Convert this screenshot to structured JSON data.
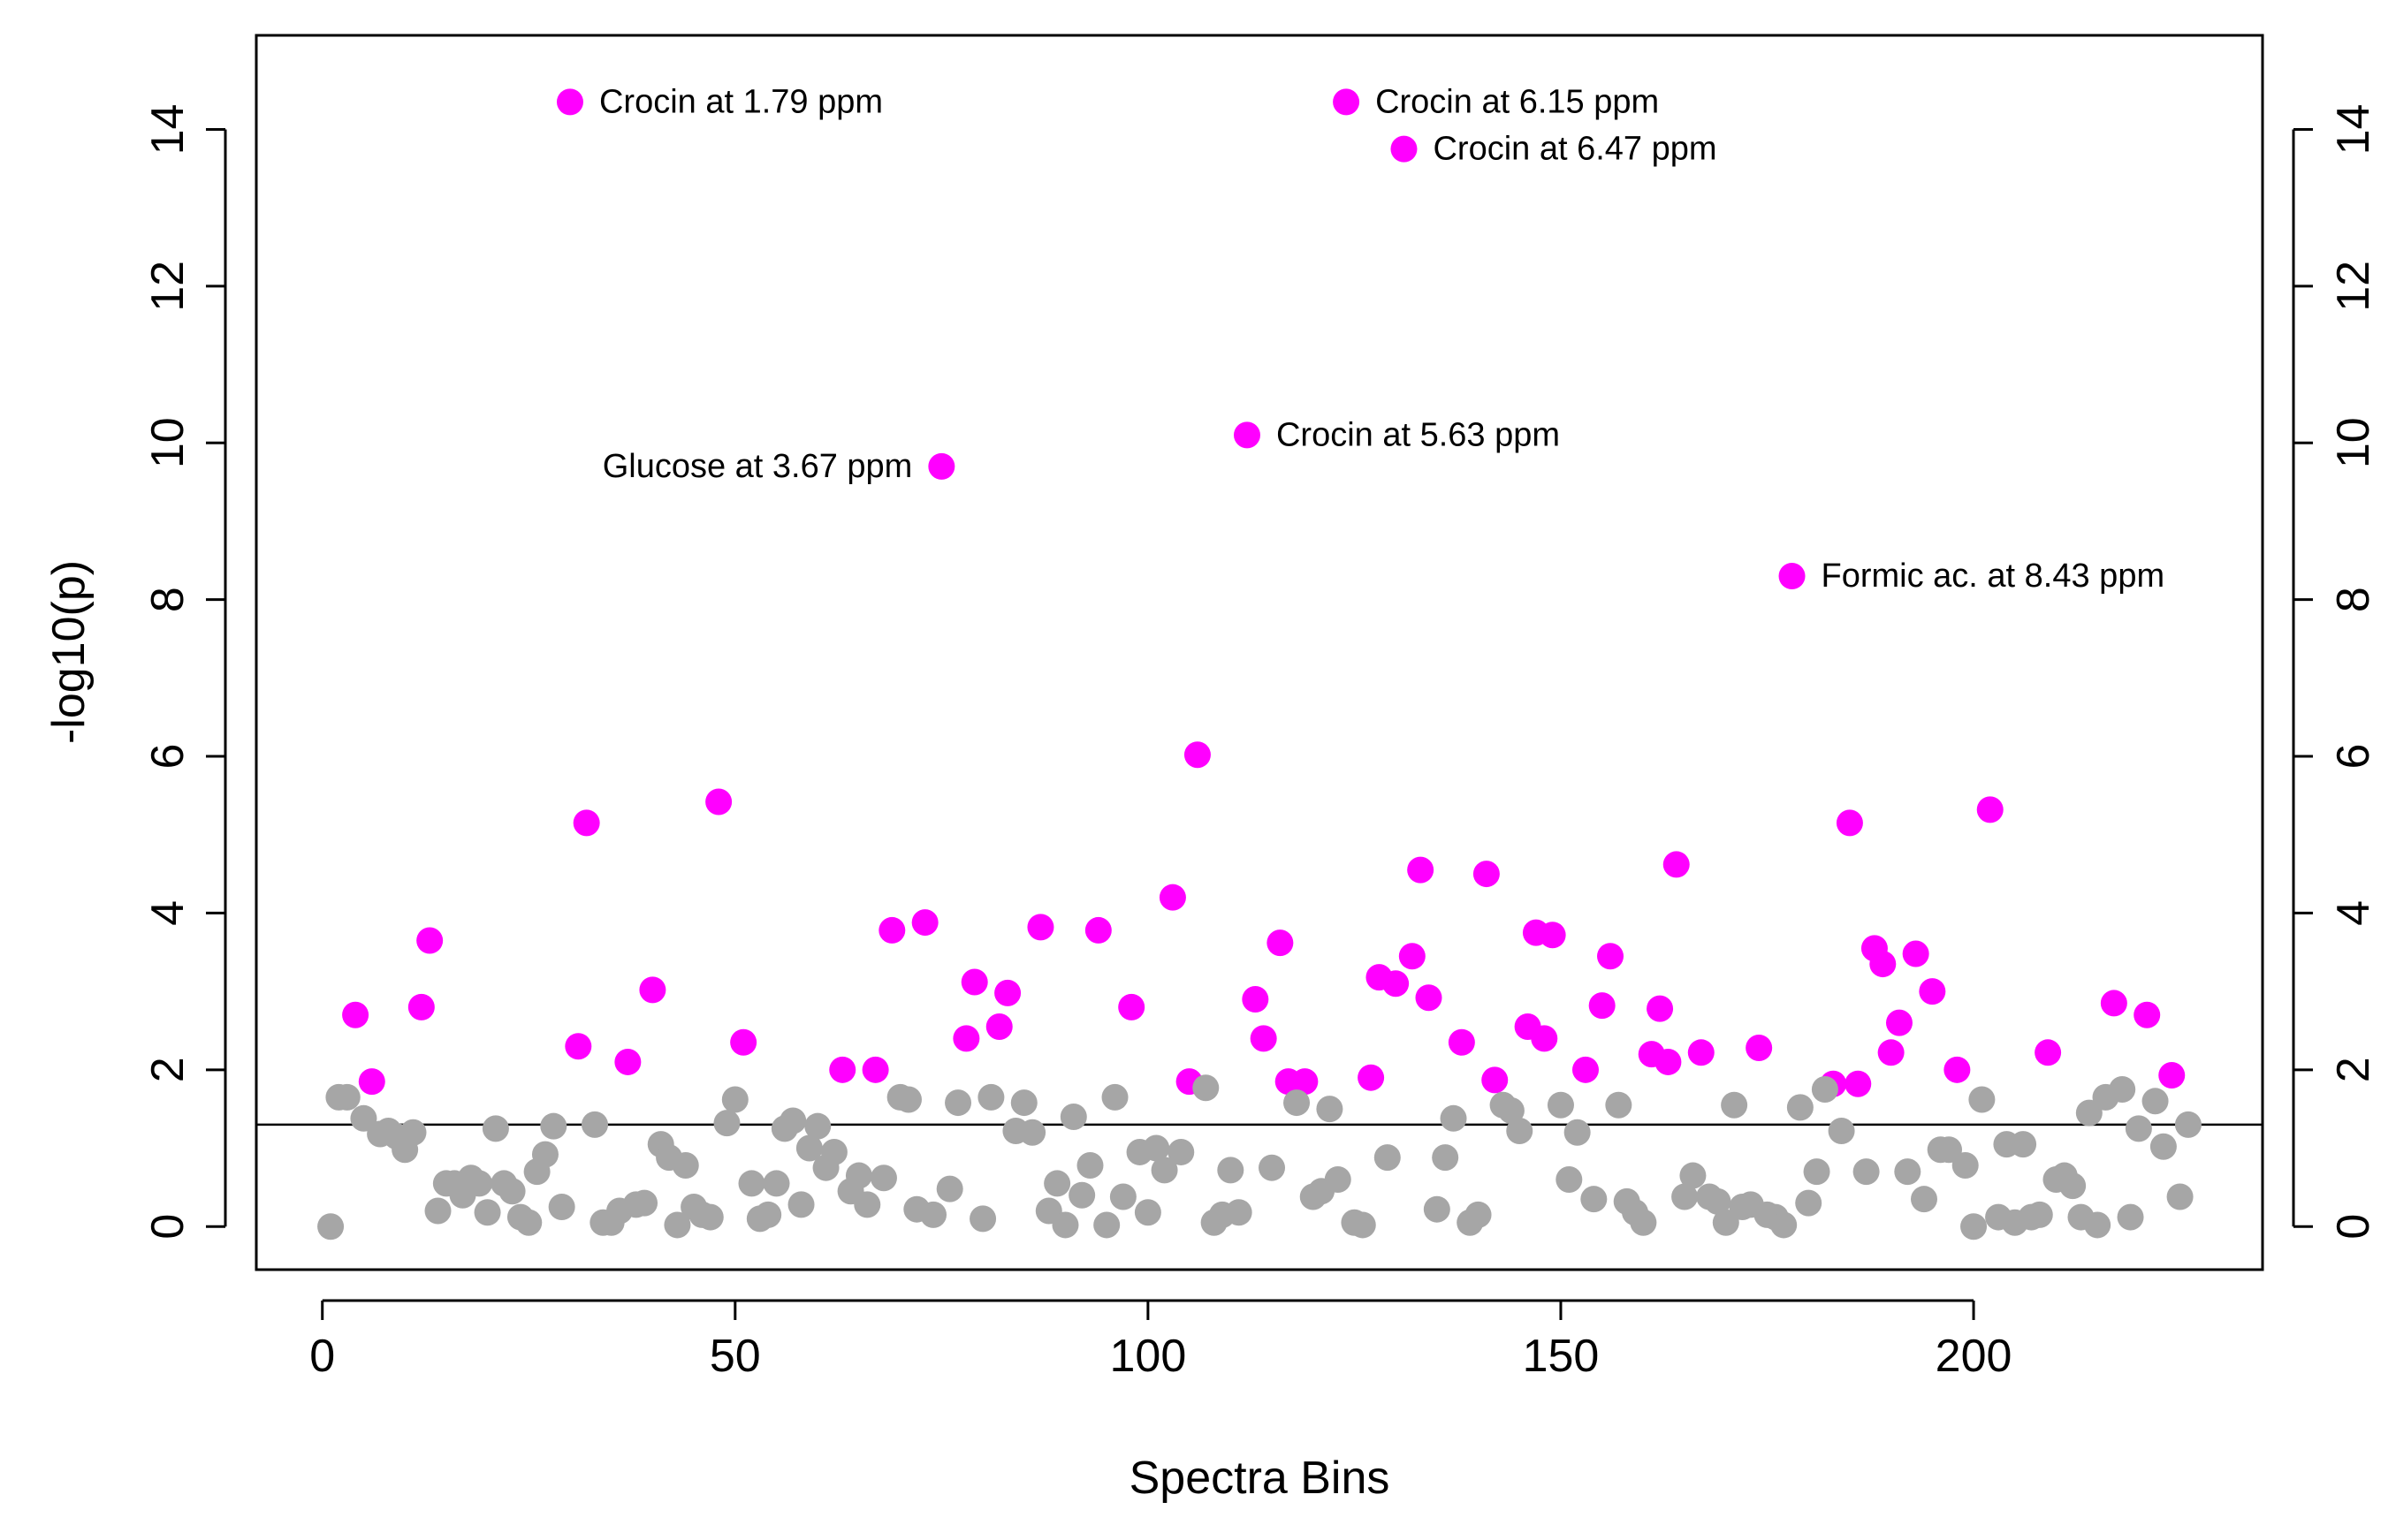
{
  "chart_data": {
    "type": "scatter",
    "xlabel": "Spectra Bins",
    "ylabel": "-log10(p)",
    "xlim": [
      -8,
      235
    ],
    "ylim": [
      -0.55,
      15.2
    ],
    "x_ticks": [
      0,
      50,
      100,
      150,
      200
    ],
    "y_ticks": [
      0,
      2,
      4,
      6,
      8,
      10,
      12,
      14
    ],
    "threshold": 1.3,
    "colors": {
      "significant": "#ff00ff",
      "not_significant": "#a6a6a6",
      "axis": "#000000"
    },
    "annotations": [
      {
        "text": "Crocin at 1.79 ppm",
        "x": 30,
        "y": 14.35,
        "side": "right"
      },
      {
        "text": "Crocin at 6.15 ppm",
        "x": 124,
        "y": 14.35,
        "side": "right"
      },
      {
        "text": "Crocin at 6.47 ppm",
        "x": 131,
        "y": 13.75,
        "side": "right"
      },
      {
        "text": "Glucose at 3.67 ppm",
        "x": 75,
        "y": 9.7,
        "side": "left"
      },
      {
        "text": "Crocin at 5.63 ppm",
        "x": 112,
        "y": 10.1,
        "side": "right"
      },
      {
        "text": "Formic ac. at 8.43 ppm",
        "x": 178,
        "y": 8.3,
        "side": "right"
      }
    ],
    "series": [
      {
        "name": "significant",
        "color": "#ff00ff",
        "points": [
          [
            4,
            2.7
          ],
          [
            6,
            1.85
          ],
          [
            12,
            2.8
          ],
          [
            13,
            3.65
          ],
          [
            30,
            14.35
          ],
          [
            31,
            2.3
          ],
          [
            32,
            5.15
          ],
          [
            37,
            2.1
          ],
          [
            40,
            3.02
          ],
          [
            48,
            5.42
          ],
          [
            51,
            2.35
          ],
          [
            63,
            2.0
          ],
          [
            67,
            2.0
          ],
          [
            69,
            3.78
          ],
          [
            73,
            3.88
          ],
          [
            75,
            9.7
          ],
          [
            78,
            2.4
          ],
          [
            79,
            3.12
          ],
          [
            82,
            2.55
          ],
          [
            83,
            2.98
          ],
          [
            87,
            3.82
          ],
          [
            94,
            3.78
          ],
          [
            98,
            2.8
          ],
          [
            103,
            4.2
          ],
          [
            105,
            1.85
          ],
          [
            106,
            6.02
          ],
          [
            112,
            10.1
          ],
          [
            113,
            2.9
          ],
          [
            114,
            2.4
          ],
          [
            116,
            3.62
          ],
          [
            117,
            1.85
          ],
          [
            119,
            1.85
          ],
          [
            124,
            14.35
          ],
          [
            127,
            1.9
          ],
          [
            128,
            3.18
          ],
          [
            130,
            3.1
          ],
          [
            131,
            13.75
          ],
          [
            132,
            3.45
          ],
          [
            133,
            4.55
          ],
          [
            134,
            2.92
          ],
          [
            138,
            2.35
          ],
          [
            141,
            4.5
          ],
          [
            142,
            1.87
          ],
          [
            146,
            2.55
          ],
          [
            147,
            3.75
          ],
          [
            148,
            2.4
          ],
          [
            149,
            3.72
          ],
          [
            153,
            2.0
          ],
          [
            155,
            2.82
          ],
          [
            156,
            3.45
          ],
          [
            161,
            2.2
          ],
          [
            162,
            2.78
          ],
          [
            163,
            2.1
          ],
          [
            164,
            4.62
          ],
          [
            167,
            2.22
          ],
          [
            174,
            2.28
          ],
          [
            178,
            8.3
          ],
          [
            183,
            1.82
          ],
          [
            185,
            5.15
          ],
          [
            186,
            1.82
          ],
          [
            188,
            3.55
          ],
          [
            189,
            3.35
          ],
          [
            190,
            2.22
          ],
          [
            191,
            2.6
          ],
          [
            193,
            3.48
          ],
          [
            195,
            3.0
          ],
          [
            198,
            2.0
          ],
          [
            202,
            5.32
          ],
          [
            209,
            2.22
          ],
          [
            217,
            2.85
          ],
          [
            221,
            2.7
          ],
          [
            224,
            1.93
          ]
        ]
      },
      {
        "name": "not_significant",
        "color": "#a6a6a6",
        "points": [
          [
            1,
            0.0
          ],
          [
            2,
            1.65
          ],
          [
            3,
            1.65
          ],
          [
            5,
            1.38
          ],
          [
            7,
            1.18
          ],
          [
            8,
            1.22
          ],
          [
            9,
            1.15
          ],
          [
            10,
            0.98
          ],
          [
            11,
            1.2
          ],
          [
            14,
            0.2
          ],
          [
            15,
            0.55
          ],
          [
            16,
            0.55
          ],
          [
            17,
            0.4
          ],
          [
            18,
            0.62
          ],
          [
            19,
            0.55
          ],
          [
            20,
            0.18
          ],
          [
            21,
            1.25
          ],
          [
            22,
            0.55
          ],
          [
            23,
            0.45
          ],
          [
            24,
            0.12
          ],
          [
            25,
            0.05
          ],
          [
            26,
            0.7
          ],
          [
            27,
            0.92
          ],
          [
            28,
            1.28
          ],
          [
            29,
            0.25
          ],
          [
            33,
            1.3
          ],
          [
            34,
            0.05
          ],
          [
            35,
            0.05
          ],
          [
            36,
            0.2
          ],
          [
            38,
            0.28
          ],
          [
            39,
            0.3
          ],
          [
            41,
            1.05
          ],
          [
            42,
            0.88
          ],
          [
            43,
            0.02
          ],
          [
            44,
            0.78
          ],
          [
            45,
            0.25
          ],
          [
            46,
            0.15
          ],
          [
            47,
            0.12
          ],
          [
            49,
            1.32
          ],
          [
            50,
            1.62
          ],
          [
            52,
            0.55
          ],
          [
            53,
            0.1
          ],
          [
            54,
            0.15
          ],
          [
            55,
            0.55
          ],
          [
            56,
            1.25
          ],
          [
            57,
            1.35
          ],
          [
            58,
            0.28
          ],
          [
            59,
            1.0
          ],
          [
            60,
            1.28
          ],
          [
            61,
            0.75
          ],
          [
            62,
            0.95
          ],
          [
            64,
            0.45
          ],
          [
            65,
            0.65
          ],
          [
            66,
            0.28
          ],
          [
            68,
            0.62
          ],
          [
            70,
            1.65
          ],
          [
            71,
            1.62
          ],
          [
            72,
            0.22
          ],
          [
            74,
            0.15
          ],
          [
            76,
            0.48
          ],
          [
            77,
            1.58
          ],
          [
            80,
            0.1
          ],
          [
            81,
            1.65
          ],
          [
            84,
            1.22
          ],
          [
            85,
            1.58
          ],
          [
            86,
            1.2
          ],
          [
            88,
            0.2
          ],
          [
            89,
            0.55
          ],
          [
            90,
            0.02
          ],
          [
            91,
            1.4
          ],
          [
            92,
            0.4
          ],
          [
            93,
            0.78
          ],
          [
            95,
            0.02
          ],
          [
            96,
            1.65
          ],
          [
            97,
            0.38
          ],
          [
            99,
            0.95
          ],
          [
            100,
            0.18
          ],
          [
            101,
            1.0
          ],
          [
            102,
            0.72
          ],
          [
            104,
            0.95
          ],
          [
            107,
            1.77
          ],
          [
            108,
            0.05
          ],
          [
            109,
            0.15
          ],
          [
            110,
            0.72
          ],
          [
            111,
            0.18
          ],
          [
            115,
            0.75
          ],
          [
            118,
            1.58
          ],
          [
            120,
            0.38
          ],
          [
            121,
            0.45
          ],
          [
            122,
            1.5
          ],
          [
            123,
            0.6
          ],
          [
            125,
            0.05
          ],
          [
            126,
            0.02
          ],
          [
            129,
            0.88
          ],
          [
            135,
            0.22
          ],
          [
            136,
            0.88
          ],
          [
            137,
            1.38
          ],
          [
            139,
            0.05
          ],
          [
            140,
            0.15
          ],
          [
            143,
            1.55
          ],
          [
            144,
            1.48
          ],
          [
            145,
            1.22
          ],
          [
            150,
            1.55
          ],
          [
            151,
            0.6
          ],
          [
            152,
            1.2
          ],
          [
            154,
            0.35
          ],
          [
            157,
            1.55
          ],
          [
            158,
            0.32
          ],
          [
            159,
            0.18
          ],
          [
            160,
            0.05
          ],
          [
            165,
            0.38
          ],
          [
            166,
            0.65
          ],
          [
            168,
            0.38
          ],
          [
            169,
            0.32
          ],
          [
            170,
            0.05
          ],
          [
            171,
            1.55
          ],
          [
            172,
            0.25
          ],
          [
            173,
            0.28
          ],
          [
            175,
            0.15
          ],
          [
            176,
            0.12
          ],
          [
            177,
            0.02
          ],
          [
            179,
            1.52
          ],
          [
            180,
            0.3
          ],
          [
            181,
            0.7
          ],
          [
            182,
            1.75
          ],
          [
            184,
            1.22
          ],
          [
            187,
            0.7
          ],
          [
            192,
            0.7
          ],
          [
            194,
            0.35
          ],
          [
            196,
            0.98
          ],
          [
            197,
            0.98
          ],
          [
            199,
            0.78
          ],
          [
            200,
            0.0
          ],
          [
            201,
            1.62
          ],
          [
            203,
            0.12
          ],
          [
            204,
            1.05
          ],
          [
            205,
            0.05
          ],
          [
            206,
            1.05
          ],
          [
            207,
            0.12
          ],
          [
            208,
            0.15
          ],
          [
            210,
            0.6
          ],
          [
            211,
            0.65
          ],
          [
            212,
            0.52
          ],
          [
            213,
            0.12
          ],
          [
            214,
            1.45
          ],
          [
            215,
            0.02
          ],
          [
            216,
            1.65
          ],
          [
            218,
            1.75
          ],
          [
            219,
            0.12
          ],
          [
            220,
            1.25
          ],
          [
            222,
            1.6
          ],
          [
            223,
            1.02
          ],
          [
            225,
            0.38
          ],
          [
            226,
            1.3
          ]
        ]
      }
    ]
  }
}
